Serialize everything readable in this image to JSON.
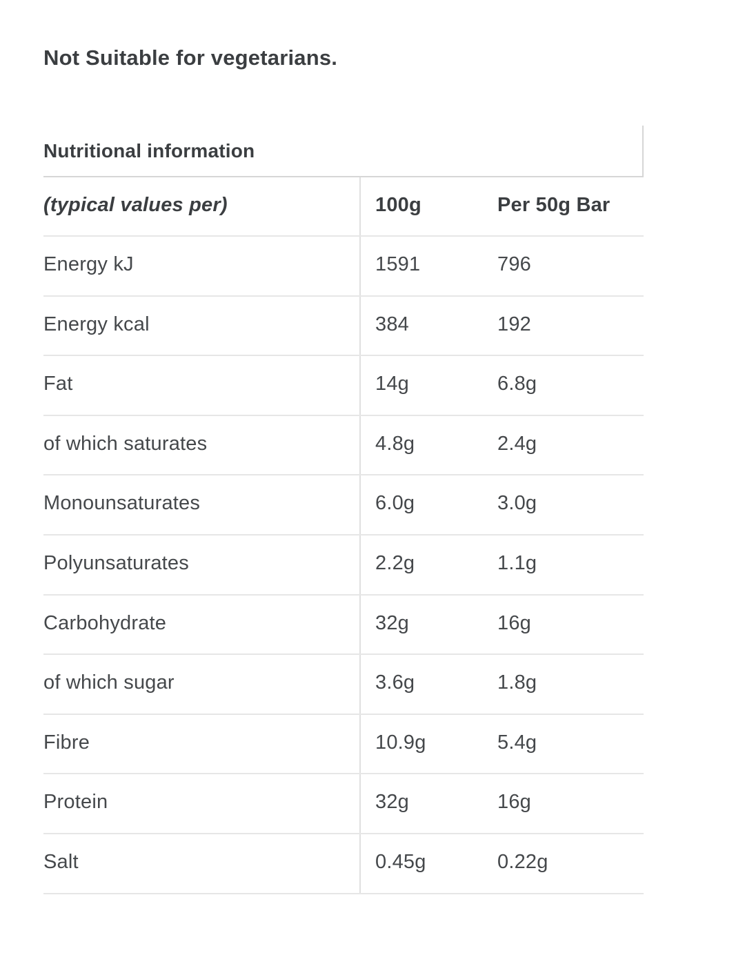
{
  "page": {
    "suitability_note": "Not Suitable for vegetarians.",
    "section_title": "Nutritional information"
  },
  "table": {
    "header": {
      "label": "(typical values per)",
      "per_100g": "100g",
      "per_50g_bar": "Per 50g Bar"
    },
    "rows": [
      {
        "label": "Energy kJ",
        "per_100g": "1591",
        "per_50g_bar": "796"
      },
      {
        "label": "Energy kcal",
        "per_100g": "384",
        "per_50g_bar": "192"
      },
      {
        "label": "Fat",
        "per_100g": "14g",
        "per_50g_bar": "6.8g"
      },
      {
        "label": "of which saturates",
        "per_100g": "4.8g",
        "per_50g_bar": "2.4g"
      },
      {
        "label": "Monounsaturates",
        "per_100g": "6.0g",
        "per_50g_bar": "3.0g"
      },
      {
        "label": "Polyunsaturates",
        "per_100g": "2.2g",
        "per_50g_bar": "1.1g"
      },
      {
        "label": "Carbohydrate",
        "per_100g": "32g",
        "per_50g_bar": "16g"
      },
      {
        "label": "of which sugar",
        "per_100g": "3.6g",
        "per_50g_bar": "1.8g"
      },
      {
        "label": "Fibre",
        "per_100g": "10.9g",
        "per_50g_bar": "5.4g"
      },
      {
        "label": "Protein",
        "per_100g": "32g",
        "per_50g_bar": "16g"
      },
      {
        "label": "Salt",
        "per_100g": "0.45g",
        "per_50g_bar": "0.22g"
      }
    ]
  },
  "colors": {
    "text_primary": "#3b3e41",
    "text_body": "#45484b",
    "border_header": "#d6d6d6",
    "border_row": "#e6e6e6",
    "border_divider": "#e0e0e0",
    "background": "#ffffff"
  }
}
